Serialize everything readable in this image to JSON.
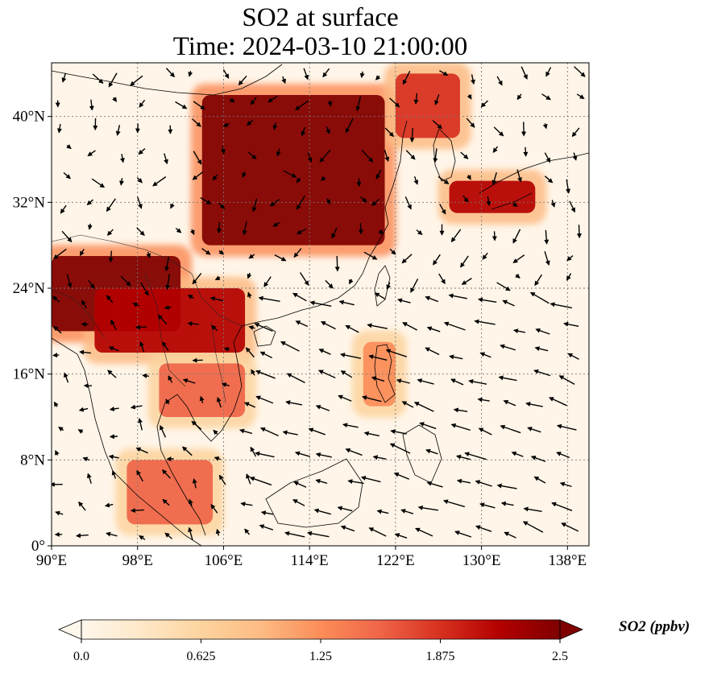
{
  "title": {
    "line1": "SO2 at surface",
    "line2": "Time: 2024-03-10 21:00:00"
  },
  "axes": {
    "x_ticks": [
      "90°E",
      "98°E",
      "106°E",
      "114°E",
      "122°E",
      "130°E",
      "138°E"
    ],
    "y_ticks": [
      "0°",
      "8°N",
      "16°N",
      "24°N",
      "32°N",
      "40°N"
    ],
    "lon_range": [
      90,
      140
    ],
    "lat_range": [
      0,
      45
    ],
    "gridlines": "dotted"
  },
  "colorbar": {
    "label": "SO2 (ppbv)",
    "ticks": [
      "0.0",
      "0.625",
      "1.25",
      "1.875",
      "2.5"
    ],
    "range": [
      0,
      2.5
    ],
    "colormap": "OrRd",
    "extend": "both",
    "colors": [
      "#fff7ec",
      "#fee8c8",
      "#fdd49e",
      "#fdbb84",
      "#fc8d59",
      "#ef6548",
      "#d7301f",
      "#b30000",
      "#7f0000"
    ]
  },
  "chart_data": {
    "type": "heatmap",
    "variable": "SO2",
    "units": "ppbv",
    "level": "surface",
    "time": "2024-03-10 21:00:00",
    "lon_range": [
      90,
      140
    ],
    "lat_range": [
      0,
      45
    ],
    "value_range": [
      0,
      2.5
    ],
    "regions_high": [
      {
        "lon": [
          104,
          121
        ],
        "lat": [
          28,
          42
        ],
        "value": 2.5
      },
      {
        "lon": [
          90,
          102
        ],
        "lat": [
          20,
          27
        ],
        "value": 2.5
      },
      {
        "lon": [
          94,
          108
        ],
        "lat": [
          18,
          24
        ],
        "value": 2.3
      },
      {
        "lon": [
          127,
          135
        ],
        "lat": [
          31,
          34
        ],
        "value": 2.2
      },
      {
        "lon": [
          122,
          128
        ],
        "lat": [
          38,
          44
        ],
        "value": 2.0
      },
      {
        "lon": [
          97,
          105
        ],
        "lat": [
          2,
          8
        ],
        "value": 1.6
      },
      {
        "lon": [
          100,
          108
        ],
        "lat": [
          12,
          17
        ],
        "value": 1.5
      },
      {
        "lon": [
          119,
          122
        ],
        "lat": [
          13,
          19
        ],
        "value": 1.4
      }
    ],
    "wind": "quiver overlay"
  }
}
